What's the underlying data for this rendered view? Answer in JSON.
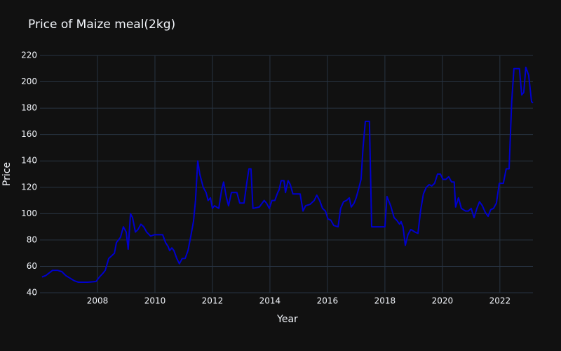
{
  "chart_data": {
    "type": "line",
    "title": "Price of Maize meal(2kg)",
    "x_label": "Year",
    "y_label": "Price",
    "x": [
      2006.07,
      2006.2,
      2006.32,
      2006.44,
      2006.61,
      2006.76,
      2006.9,
      2007.05,
      2007.2,
      2007.34,
      2007.66,
      2007.95,
      2008.07,
      2008.2,
      2008.27,
      2008.39,
      2008.59,
      2008.66,
      2008.8,
      2008.9,
      2009.0,
      2009.07,
      2009.15,
      2009.22,
      2009.32,
      2009.41,
      2009.51,
      2009.61,
      2009.71,
      2009.85,
      2009.98,
      2010.27,
      2010.37,
      2010.46,
      2010.51,
      2010.59,
      2010.66,
      2010.76,
      2010.85,
      2010.95,
      2011.05,
      2011.15,
      2011.24,
      2011.34,
      2011.41,
      2011.49,
      2011.56,
      2011.68,
      2011.78,
      2011.85,
      2011.93,
      2012.0,
      2012.07,
      2012.22,
      2012.32,
      2012.39,
      2012.49,
      2012.56,
      2012.66,
      2012.85,
      2012.95,
      2013.1,
      2013.2,
      2013.27,
      2013.34,
      2013.41,
      2013.63,
      2013.73,
      2013.8,
      2013.88,
      2013.98,
      2014.07,
      2014.17,
      2014.27,
      2014.32,
      2014.39,
      2014.49,
      2014.54,
      2014.63,
      2014.71,
      2014.8,
      2015.05,
      2015.15,
      2015.24,
      2015.39,
      2015.54,
      2015.63,
      2015.73,
      2015.83,
      2015.93,
      2016.02,
      2016.12,
      2016.22,
      2016.37,
      2016.46,
      2016.56,
      2016.66,
      2016.76,
      2016.83,
      2016.93,
      2017.0,
      2017.1,
      2017.17,
      2017.24,
      2017.32,
      2017.46,
      2017.54,
      2018.0,
      2018.07,
      2018.2,
      2018.32,
      2018.41,
      2018.51,
      2018.56,
      2018.63,
      2018.71,
      2018.8,
      2018.9,
      2019.05,
      2019.15,
      2019.24,
      2019.34,
      2019.44,
      2019.54,
      2019.63,
      2019.73,
      2019.83,
      2019.93,
      2020.02,
      2020.12,
      2020.22,
      2020.32,
      2020.41,
      2020.46,
      2020.56,
      2020.66,
      2020.8,
      2020.9,
      2021.0,
      2021.1,
      2021.2,
      2021.29,
      2021.39,
      2021.49,
      2021.59,
      2021.68,
      2021.78,
      2021.88,
      2021.98,
      2022.12,
      2022.22,
      2022.32,
      2022.41,
      2022.49,
      2022.68,
      2022.76,
      2022.83,
      2022.9,
      2023.0,
      2023.1,
      2023.15
    ],
    "series": [
      {
        "name": "Price",
        "color": "#0000cd",
        "values": [
          52,
          53,
          55,
          57,
          57,
          56,
          53,
          51,
          49,
          48,
          48,
          48.5,
          52,
          55,
          57,
          66,
          70,
          78,
          82,
          90,
          86,
          73,
          100,
          97,
          86,
          88,
          92,
          90,
          86,
          83,
          84,
          84,
          78,
          75,
          72,
          74,
          72,
          66,
          62,
          66,
          66,
          72,
          82,
          94,
          110,
          140,
          130,
          120,
          116,
          110,
          112,
          104,
          106,
          104,
          118,
          124,
          112,
          106,
          116,
          116,
          108,
          108,
          124,
          134,
          134,
          104,
          105,
          108,
          110,
          108,
          104,
          110,
          110,
          116,
          118,
          125,
          125,
          116,
          125,
          122,
          115,
          115,
          102,
          106,
          107,
          110,
          114,
          110,
          104,
          102,
          96,
          95,
          91,
          90,
          104,
          109,
          110,
          112,
          105,
          108,
          112,
          120,
          126,
          150,
          170,
          170,
          90,
          90,
          113,
          106,
          97,
          95,
          92,
          94,
          90,
          76,
          84,
          88,
          86,
          85,
          102,
          115,
          120,
          122,
          121,
          123,
          130,
          130,
          126,
          126,
          128,
          124,
          124,
          105,
          112,
          104,
          102,
          102,
          104,
          97,
          104,
          109,
          106,
          101,
          98,
          103,
          104,
          108,
          123,
          123,
          134,
          134,
          185,
          210,
          210,
          190,
          192,
          211,
          205,
          185,
          184
        ]
      }
    ],
    "xlim": [
      2006,
      2023.15
    ],
    "xticks": [
      2008,
      2010,
      2012,
      2014,
      2016,
      2018,
      2020,
      2022
    ],
    "ylim": [
      40,
      220
    ],
    "yticks": [
      40,
      60,
      80,
      100,
      120,
      140,
      160,
      180,
      200,
      220
    ],
    "grid": true
  }
}
